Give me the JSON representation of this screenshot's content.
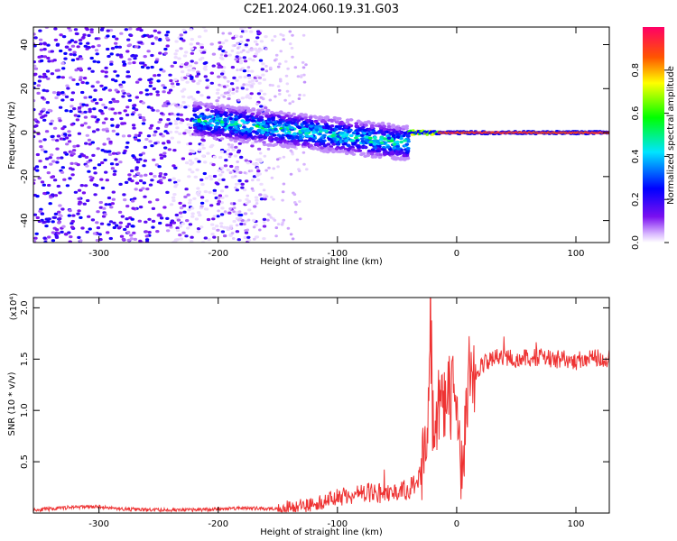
{
  "title": "C2E1.2024.060.19.31.G03",
  "chart_data": [
    {
      "type": "heatmap",
      "xlabel": "Height of straight line (km)",
      "ylabel": "Frequency (Hz)",
      "xlim": [
        -355,
        128
      ],
      "ylim": [
        -50,
        48
      ],
      "xticks": [
        -300,
        -200,
        -100,
        0,
        100
      ],
      "yticks": [
        -40,
        -20,
        0,
        20,
        40
      ],
      "colorbar": {
        "label": "Normalized spectral amplitude",
        "range": [
          0.0,
          1.0
        ],
        "ticks": [
          "0.0",
          "0.2",
          "0.4",
          "0.6",
          "0.8"
        ]
      },
      "features": [
        {
          "x_range": [
            -355,
            -180
          ],
          "y_range": [
            -50,
            48
          ],
          "amplitude": 0.2
        },
        {
          "x_range": [
            -220,
            -40
          ],
          "center_freq_start": 6,
          "center_freq_end": -5,
          "spread_hz": 8,
          "peak_amplitude": 0.55
        },
        {
          "x_range": [
            -40,
            128
          ],
          "center_freq": 0,
          "spread_hz": 2,
          "peak_amplitude": 0.95
        }
      ]
    },
    {
      "type": "line",
      "xlabel": "Height of straight line (km)",
      "ylabel": "SNR (10 * v/v)",
      "multiplier": "(x10⁴)",
      "xlim": [
        -355,
        128
      ],
      "ylim": [
        0,
        2.1
      ],
      "xticks": [
        -300,
        -200,
        -100,
        0,
        100
      ],
      "yticks": [
        "0.5",
        "1.0",
        "1.5",
        "2.0"
      ],
      "color": "#ee3333",
      "x": [
        -355,
        -340,
        -320,
        -300,
        -280,
        -260,
        -240,
        -220,
        -200,
        -180,
        -160,
        -140,
        -130,
        -120,
        -110,
        -100,
        -90,
        -80,
        -70,
        -60,
        -50,
        -40,
        -35,
        -30,
        -27,
        -25,
        -23,
        -22,
        -20,
        -17,
        -15,
        -12,
        -10,
        -8,
        -5,
        -2,
        0,
        2,
        5,
        8,
        10,
        12,
        15,
        20,
        25,
        30,
        40,
        50,
        60,
        70,
        80,
        90,
        100,
        110,
        120,
        128
      ],
      "y": [
        0.03,
        0.04,
        0.06,
        0.06,
        0.04,
        0.03,
        0.03,
        0.03,
        0.04,
        0.05,
        0.04,
        0.06,
        0.07,
        0.09,
        0.12,
        0.15,
        0.17,
        0.19,
        0.2,
        0.19,
        0.21,
        0.23,
        0.27,
        0.34,
        0.65,
        1.0,
        1.15,
        2.05,
        0.9,
        0.85,
        1.0,
        1.05,
        1.1,
        1.12,
        1.18,
        1.05,
        0.85,
        0.6,
        0.32,
        1.05,
        1.25,
        1.3,
        1.35,
        1.42,
        1.48,
        1.5,
        1.52,
        1.5,
        1.5,
        1.52,
        1.5,
        1.5,
        1.48,
        1.5,
        1.52,
        1.5
      ]
    }
  ]
}
